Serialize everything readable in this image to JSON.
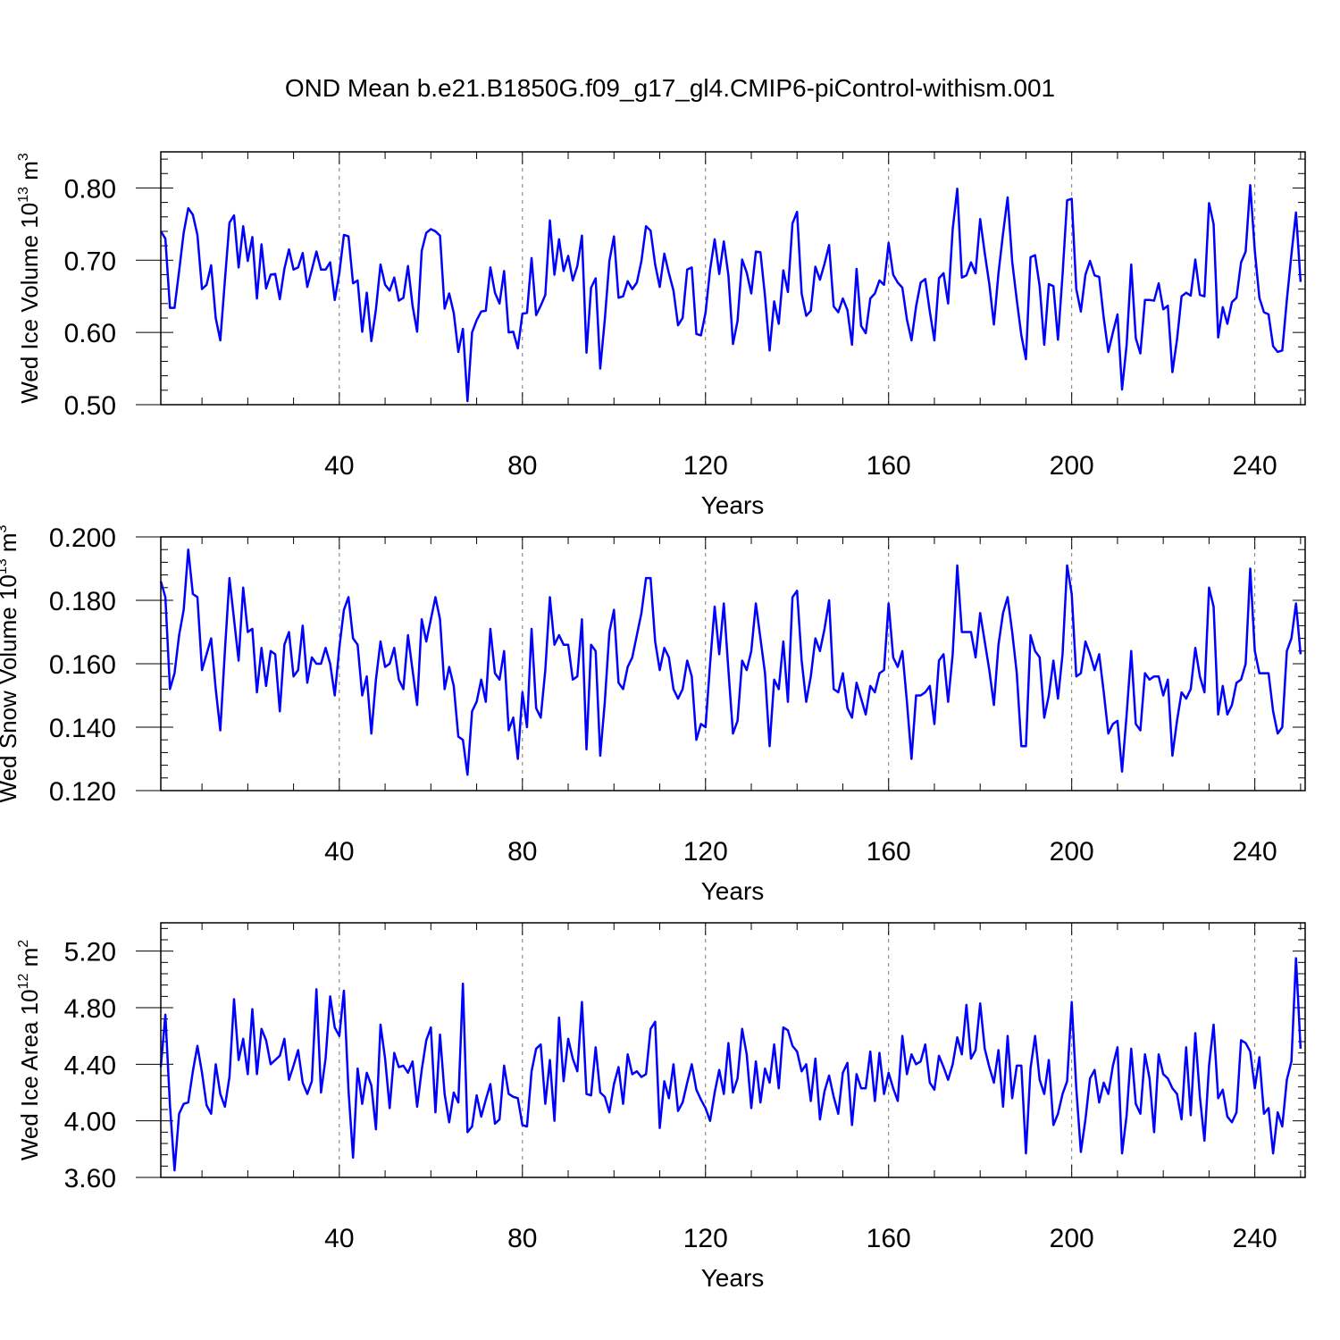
{
  "title": "OND Mean b.e21.B1850G.f09_g17_gl4.CMIP6-piControl-withism.001",
  "style": {
    "line_color": "#0000ff",
    "grid_color": "#777777"
  },
  "chart_data": [
    {
      "type": "line",
      "ylabel": {
        "main": "Wed Ice Volume 10",
        "sup": "13",
        "unit": " m",
        "unit_sup": "3"
      },
      "xlabel": "Years",
      "xlim": [
        1,
        251
      ],
      "ylim": [
        0.5,
        0.85
      ],
      "yticks": [
        0.5,
        0.6,
        0.7,
        0.8
      ],
      "ytick_labels": [
        "0.50",
        "0.60",
        "0.70",
        "0.80"
      ],
      "xticks": [
        40,
        80,
        120,
        160,
        200,
        240
      ],
      "xtick_labels": [
        "40",
        "80",
        "120",
        "160",
        "200",
        "240"
      ],
      "x_grid": "dashed vertical lines at major ticks",
      "series": [
        {
          "name": "Wed Ice Volume",
          "x_start": 1,
          "values": [
            0.74,
            0.73,
            0.634,
            0.634,
            0.685,
            0.738,
            0.772,
            0.763,
            0.735,
            0.66,
            0.666,
            0.693,
            0.62,
            0.589,
            0.672,
            0.752,
            0.762,
            0.69,
            0.747,
            0.699,
            0.732,
            0.647,
            0.722,
            0.661,
            0.68,
            0.681,
            0.646,
            0.688,
            0.715,
            0.687,
            0.69,
            0.71,
            0.663,
            0.687,
            0.712,
            0.687,
            0.687,
            0.697,
            0.645,
            0.682,
            0.735,
            0.733,
            0.668,
            0.672,
            0.601,
            0.655,
            0.588,
            0.632,
            0.694,
            0.666,
            0.658,
            0.676,
            0.644,
            0.648,
            0.692,
            0.637,
            0.601,
            0.713,
            0.738,
            0.743,
            0.74,
            0.734,
            0.633,
            0.654,
            0.627,
            0.573,
            0.605,
            0.505,
            0.6,
            0.617,
            0.629,
            0.63,
            0.69,
            0.655,
            0.64,
            0.685,
            0.6,
            0.601,
            0.578,
            0.626,
            0.627,
            0.703,
            0.624,
            0.637,
            0.652,
            0.755,
            0.68,
            0.729,
            0.685,
            0.706,
            0.672,
            0.692,
            0.734,
            0.572,
            0.662,
            0.675,
            0.55,
            0.618,
            0.699,
            0.733,
            0.648,
            0.65,
            0.671,
            0.66,
            0.669,
            0.699,
            0.747,
            0.741,
            0.694,
            0.663,
            0.709,
            0.682,
            0.658,
            0.61,
            0.62,
            0.687,
            0.69,
            0.598,
            0.596,
            0.627,
            0.687,
            0.729,
            0.681,
            0.726,
            0.679,
            0.584,
            0.616,
            0.701,
            0.683,
            0.654,
            0.712,
            0.711,
            0.65,
            0.575,
            0.643,
            0.612,
            0.686,
            0.656,
            0.751,
            0.767,
            0.654,
            0.623,
            0.63,
            0.691,
            0.673,
            0.695,
            0.721,
            0.636,
            0.628,
            0.647,
            0.631,
            0.583,
            0.688,
            0.609,
            0.599,
            0.647,
            0.654,
            0.672,
            0.666,
            0.724,
            0.68,
            0.669,
            0.662,
            0.618,
            0.589,
            0.636,
            0.669,
            0.674,
            0.629,
            0.589,
            0.675,
            0.682,
            0.64,
            0.743,
            0.799,
            0.676,
            0.679,
            0.697,
            0.682,
            0.757,
            0.71,
            0.667,
            0.611,
            0.682,
            0.737,
            0.787,
            0.698,
            0.645,
            0.596,
            0.563,
            0.704,
            0.707,
            0.664,
            0.583,
            0.667,
            0.664,
            0.59,
            0.68,
            0.783,
            0.785,
            0.66,
            0.629,
            0.68,
            0.699,
            0.679,
            0.677,
            0.62,
            0.573,
            0.6,
            0.625,
            0.521,
            0.583,
            0.694,
            0.592,
            0.571,
            0.645,
            0.645,
            0.644,
            0.668,
            0.632,
            0.637,
            0.545,
            0.59,
            0.65,
            0.655,
            0.651,
            0.701,
            0.652,
            0.65,
            0.779,
            0.75,
            0.593,
            0.635,
            0.612,
            0.642,
            0.648,
            0.697,
            0.712,
            0.804,
            0.713,
            0.648,
            0.628,
            0.625,
            0.581,
            0.573,
            0.575,
            0.645,
            0.708,
            0.766,
            0.67
          ]
        }
      ]
    },
    {
      "type": "line",
      "ylabel": {
        "main": "Wed Snow Volume 10",
        "sup": "13",
        "unit": " m",
        "unit_sup": "3"
      },
      "xlabel": "Years",
      "xlim": [
        1,
        251
      ],
      "ylim": [
        0.12,
        0.2
      ],
      "yticks": [
        0.12,
        0.14,
        0.16,
        0.18,
        0.2
      ],
      "ytick_labels": [
        "0.120",
        "0.140",
        "0.160",
        "0.180",
        "0.200"
      ],
      "xticks": [
        40,
        80,
        120,
        160,
        200,
        240
      ],
      "xtick_labels": [
        "40",
        "80",
        "120",
        "160",
        "200",
        "240"
      ],
      "x_grid": "dashed vertical lines at major ticks",
      "series": [
        {
          "name": "Wed Snow Volume",
          "x_start": 1,
          "values": [
            0.186,
            0.181,
            0.152,
            0.157,
            0.169,
            0.177,
            0.196,
            0.182,
            0.181,
            0.158,
            0.163,
            0.168,
            0.152,
            0.139,
            0.164,
            0.187,
            0.174,
            0.161,
            0.184,
            0.17,
            0.171,
            0.151,
            0.165,
            0.153,
            0.164,
            0.163,
            0.145,
            0.166,
            0.17,
            0.156,
            0.158,
            0.172,
            0.154,
            0.162,
            0.16,
            0.16,
            0.165,
            0.16,
            0.15,
            0.165,
            0.177,
            0.181,
            0.168,
            0.166,
            0.15,
            0.156,
            0.138,
            0.155,
            0.167,
            0.159,
            0.16,
            0.165,
            0.155,
            0.152,
            0.169,
            0.158,
            0.147,
            0.174,
            0.167,
            0.174,
            0.181,
            0.174,
            0.152,
            0.159,
            0.153,
            0.137,
            0.136,
            0.125,
            0.145,
            0.148,
            0.155,
            0.148,
            0.171,
            0.157,
            0.155,
            0.164,
            0.139,
            0.143,
            0.13,
            0.151,
            0.14,
            0.171,
            0.146,
            0.143,
            0.158,
            0.181,
            0.166,
            0.169,
            0.166,
            0.166,
            0.155,
            0.156,
            0.174,
            0.133,
            0.166,
            0.164,
            0.131,
            0.148,
            0.17,
            0.177,
            0.154,
            0.152,
            0.159,
            0.162,
            0.169,
            0.176,
            0.187,
            0.187,
            0.167,
            0.158,
            0.165,
            0.162,
            0.152,
            0.149,
            0.152,
            0.161,
            0.156,
            0.136,
            0.141,
            0.14,
            0.16,
            0.178,
            0.163,
            0.179,
            0.158,
            0.138,
            0.142,
            0.161,
            0.158,
            0.164,
            0.179,
            0.168,
            0.157,
            0.134,
            0.155,
            0.152,
            0.167,
            0.148,
            0.181,
            0.183,
            0.161,
            0.148,
            0.156,
            0.168,
            0.164,
            0.171,
            0.18,
            0.152,
            0.151,
            0.157,
            0.146,
            0.143,
            0.154,
            0.149,
            0.144,
            0.153,
            0.151,
            0.157,
            0.158,
            0.179,
            0.162,
            0.159,
            0.164,
            0.148,
            0.13,
            0.15,
            0.15,
            0.151,
            0.153,
            0.141,
            0.161,
            0.163,
            0.148,
            0.163,
            0.191,
            0.17,
            0.17,
            0.17,
            0.162,
            0.176,
            0.167,
            0.158,
            0.147,
            0.166,
            0.176,
            0.181,
            0.17,
            0.157,
            0.134,
            0.134,
            0.169,
            0.164,
            0.162,
            0.143,
            0.15,
            0.161,
            0.149,
            0.163,
            0.191,
            0.182,
            0.156,
            0.157,
            0.167,
            0.163,
            0.158,
            0.163,
            0.151,
            0.138,
            0.141,
            0.142,
            0.126,
            0.144,
            0.164,
            0.141,
            0.139,
            0.157,
            0.155,
            0.156,
            0.156,
            0.15,
            0.155,
            0.131,
            0.142,
            0.151,
            0.149,
            0.152,
            0.165,
            0.156,
            0.151,
            0.184,
            0.178,
            0.144,
            0.153,
            0.144,
            0.147,
            0.154,
            0.155,
            0.16,
            0.19,
            0.164,
            0.157,
            0.157,
            0.157,
            0.145,
            0.138,
            0.14,
            0.164,
            0.168,
            0.179,
            0.163
          ]
        }
      ]
    },
    {
      "type": "line",
      "ylabel": {
        "main": "Wed Ice Area 10",
        "sup": "12",
        "unit": " m",
        "unit_sup": "2"
      },
      "xlabel": "Years",
      "xlim": [
        1,
        251
      ],
      "ylim": [
        3.6,
        5.4
      ],
      "yticks": [
        3.6,
        4.0,
        4.4,
        4.8,
        5.2
      ],
      "ytick_labels": [
        "3.60",
        "4.00",
        "4.40",
        "4.80",
        "5.20"
      ],
      "xticks": [
        40,
        80,
        120,
        160,
        200,
        240
      ],
      "xtick_labels": [
        "40",
        "80",
        "120",
        "160",
        "200",
        "240"
      ],
      "x_grid": "dashed vertical lines at major ticks",
      "series": [
        {
          "name": "Wed Ice Area",
          "x_start": 1,
          "values": [
            4.38,
            4.75,
            4.11,
            3.65,
            4.05,
            4.12,
            4.13,
            4.35,
            4.53,
            4.34,
            4.11,
            4.05,
            4.4,
            4.19,
            4.1,
            4.31,
            4.86,
            4.43,
            4.58,
            4.33,
            4.79,
            4.33,
            4.65,
            4.57,
            4.4,
            4.43,
            4.46,
            4.58,
            4.29,
            4.39,
            4.5,
            4.27,
            4.19,
            4.28,
            4.93,
            4.2,
            4.44,
            4.88,
            4.66,
            4.6,
            4.92,
            4.22,
            3.74,
            4.37,
            4.12,
            4.34,
            4.25,
            3.94,
            4.68,
            4.44,
            4.09,
            4.48,
            4.38,
            4.39,
            4.34,
            4.42,
            4.1,
            4.36,
            4.57,
            4.66,
            4.06,
            4.61,
            4.19,
            3.99,
            4.2,
            4.13,
            4.97,
            3.92,
            3.96,
            4.18,
            4.03,
            4.15,
            4.26,
            3.98,
            4.01,
            4.39,
            4.19,
            4.17,
            4.16,
            3.97,
            3.96,
            4.35,
            4.51,
            4.54,
            4.12,
            4.43,
            4.0,
            4.73,
            4.28,
            4.58,
            4.44,
            4.35,
            4.84,
            4.19,
            4.18,
            4.52,
            4.2,
            4.17,
            4.06,
            4.26,
            4.38,
            4.12,
            4.47,
            4.33,
            4.35,
            4.31,
            4.33,
            4.65,
            4.7,
            3.95,
            4.28,
            4.16,
            4.4,
            4.07,
            4.13,
            4.27,
            4.4,
            4.22,
            4.15,
            4.09,
            4.0,
            4.2,
            4.36,
            4.19,
            4.55,
            4.2,
            4.3,
            4.65,
            4.47,
            4.09,
            4.42,
            4.13,
            4.37,
            4.27,
            4.54,
            4.23,
            4.66,
            4.64,
            4.53,
            4.49,
            4.35,
            4.4,
            4.14,
            4.44,
            4.01,
            4.21,
            4.32,
            4.17,
            4.05,
            4.34,
            4.41,
            3.97,
            4.33,
            4.23,
            4.23,
            4.49,
            4.14,
            4.48,
            4.19,
            4.34,
            4.23,
            4.14,
            4.6,
            4.33,
            4.47,
            4.4,
            4.42,
            4.54,
            4.27,
            4.22,
            4.46,
            4.38,
            4.29,
            4.4,
            4.59,
            4.47,
            4.82,
            4.44,
            4.5,
            4.83,
            4.51,
            4.38,
            4.27,
            4.5,
            4.1,
            4.6,
            4.16,
            4.39,
            4.39,
            3.77,
            4.37,
            4.6,
            4.29,
            4.19,
            4.43,
            3.97,
            4.05,
            4.19,
            4.28,
            4.84,
            4.23,
            3.78,
            4.01,
            4.3,
            4.36,
            4.13,
            4.27,
            4.19,
            4.39,
            4.52,
            3.77,
            4.04,
            4.51,
            4.12,
            4.05,
            4.47,
            4.3,
            3.92,
            4.47,
            4.33,
            4.3,
            4.23,
            4.19,
            4.01,
            4.52,
            4.04,
            4.62,
            4.17,
            3.86,
            4.39,
            4.68,
            4.16,
            4.22,
            4.03,
            3.99,
            4.06,
            4.57,
            4.55,
            4.49,
            4.23,
            4.45,
            4.05,
            4.09,
            3.77,
            4.06,
            3.96,
            4.29,
            4.42,
            5.15,
            4.51
          ]
        }
      ]
    }
  ]
}
